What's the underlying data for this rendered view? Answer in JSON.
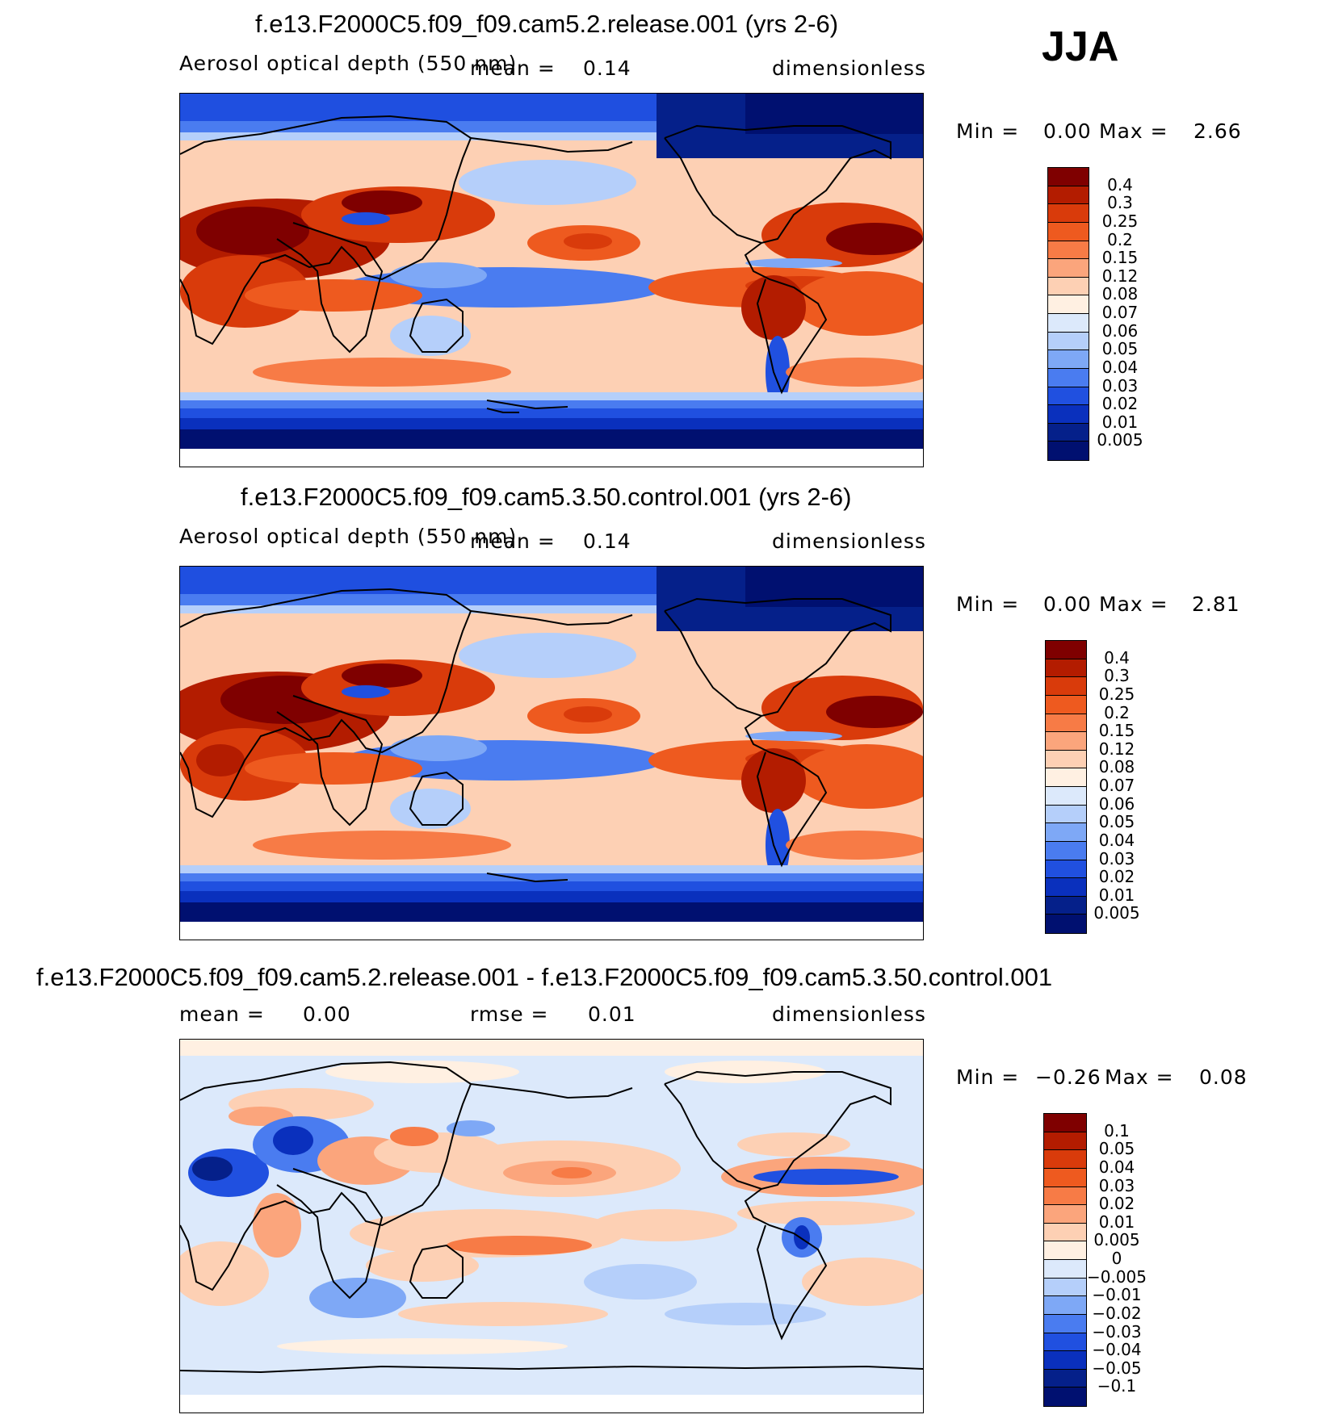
{
  "season": "JJA",
  "panels": [
    {
      "title": "f.e13.F2000C5.f09_f09.cam5.2.release.001 (yrs 2-6)",
      "variable": "Aerosol optical depth (550 nm)",
      "stat1_label": "mean =",
      "stat1_value": "0.14",
      "stat2_label": "",
      "stat2_value": "",
      "units": "dimensionless",
      "min_label": "Min =",
      "min_value": "0.00",
      "max_label": "Max =",
      "max_value": "2.66",
      "colorbar": {
        "labels": [
          "0.4",
          "0.3",
          "0.25",
          "0.2",
          "0.15",
          "0.12",
          "0.08",
          "0.07",
          "0.06",
          "0.05",
          "0.04",
          "0.03",
          "0.02",
          "0.01",
          "0.005"
        ],
        "colors": [
          "#7f0000",
          "#b31c00",
          "#d93b0b",
          "#ee5a1f",
          "#f77b46",
          "#fba57c",
          "#fdd0b4",
          "#fff0e2",
          "#dce9fb",
          "#b5cffa",
          "#7ea8f6",
          "#4a7cf0",
          "#2050e0",
          "#0a30bd",
          "#05208a",
          "#001070"
        ]
      }
    },
    {
      "title": "f.e13.F2000C5.f09_f09.cam5.3.50.control.001 (yrs 2-6)",
      "variable": "Aerosol optical depth (550 nm)",
      "stat1_label": "mean =",
      "stat1_value": "0.14",
      "stat2_label": "",
      "stat2_value": "",
      "units": "dimensionless",
      "min_label": "Min =",
      "min_value": "0.00",
      "max_label": "Max =",
      "max_value": "2.81",
      "colorbar": {
        "labels": [
          "0.4",
          "0.3",
          "0.25",
          "0.2",
          "0.15",
          "0.12",
          "0.08",
          "0.07",
          "0.06",
          "0.05",
          "0.04",
          "0.03",
          "0.02",
          "0.01",
          "0.005"
        ],
        "colors": [
          "#7f0000",
          "#b31c00",
          "#d93b0b",
          "#ee5a1f",
          "#f77b46",
          "#fba57c",
          "#fdd0b4",
          "#fff0e2",
          "#dce9fb",
          "#b5cffa",
          "#7ea8f6",
          "#4a7cf0",
          "#2050e0",
          "#0a30bd",
          "#05208a",
          "#001070"
        ]
      }
    },
    {
      "title": "f.e13.F2000C5.f09_f09.cam5.2.release.001 - f.e13.F2000C5.f09_f09.cam5.3.50.control.001",
      "variable": "",
      "stat1_label": "mean =",
      "stat1_value": "0.00",
      "stat2_label": "rmse =",
      "stat2_value": "0.01",
      "units": "dimensionless",
      "min_label": "Min =",
      "min_value": "−0.26",
      "max_label": "Max =",
      "max_value": "0.08",
      "colorbar": {
        "labels": [
          "0.1",
          "0.05",
          "0.04",
          "0.03",
          "0.02",
          "0.01",
          "0.005",
          "0",
          "−0.005",
          "−0.01",
          "−0.02",
          "−0.03",
          "−0.04",
          "−0.05",
          "−0.1"
        ],
        "colors": [
          "#7f0000",
          "#b31c00",
          "#d93b0b",
          "#ee5a1f",
          "#f77b46",
          "#fba57c",
          "#fdd0b4",
          "#fff0e2",
          "#dce9fb",
          "#b5cffa",
          "#7ea8f6",
          "#4a7cf0",
          "#2050e0",
          "#0a30bd",
          "#05208a",
          "#001070"
        ]
      }
    }
  ],
  "chart_data": [
    {
      "type": "heatmap",
      "title": "f.e13.F2000C5.f09_f09.cam5.2.release.001 (yrs 2-6)",
      "variable": "Aerosol optical depth (550 nm)",
      "units": "dimensionless",
      "mean": 0.14,
      "min": 0.0,
      "max": 2.66,
      "contour_levels": [
        0.005,
        0.01,
        0.02,
        0.03,
        0.04,
        0.05,
        0.06,
        0.07,
        0.08,
        0.12,
        0.15,
        0.2,
        0.25,
        0.3,
        0.4
      ],
      "projection": "cylindrical equidistant, Pacific-centred"
    },
    {
      "type": "heatmap",
      "title": "f.e13.F2000C5.f09_f09.cam5.3.50.control.001 (yrs 2-6)",
      "variable": "Aerosol optical depth (550 nm)",
      "units": "dimensionless",
      "mean": 0.14,
      "min": 0.0,
      "max": 2.81,
      "contour_levels": [
        0.005,
        0.01,
        0.02,
        0.03,
        0.04,
        0.05,
        0.06,
        0.07,
        0.08,
        0.12,
        0.15,
        0.2,
        0.25,
        0.3,
        0.4
      ],
      "projection": "cylindrical equidistant, Pacific-centred"
    },
    {
      "type": "heatmap",
      "title": "f.e13.F2000C5.f09_f09.cam5.2.release.001 - f.e13.F2000C5.f09_f09.cam5.3.50.control.001",
      "units": "dimensionless",
      "mean": 0.0,
      "rmse": 0.01,
      "min": -0.26,
      "max": 0.08,
      "contour_levels": [
        -0.1,
        -0.05,
        -0.04,
        -0.03,
        -0.02,
        -0.01,
        -0.005,
        0,
        0.005,
        0.01,
        0.02,
        0.03,
        0.04,
        0.05,
        0.1
      ],
      "projection": "cylindrical equidistant, Pacific-centred"
    }
  ]
}
